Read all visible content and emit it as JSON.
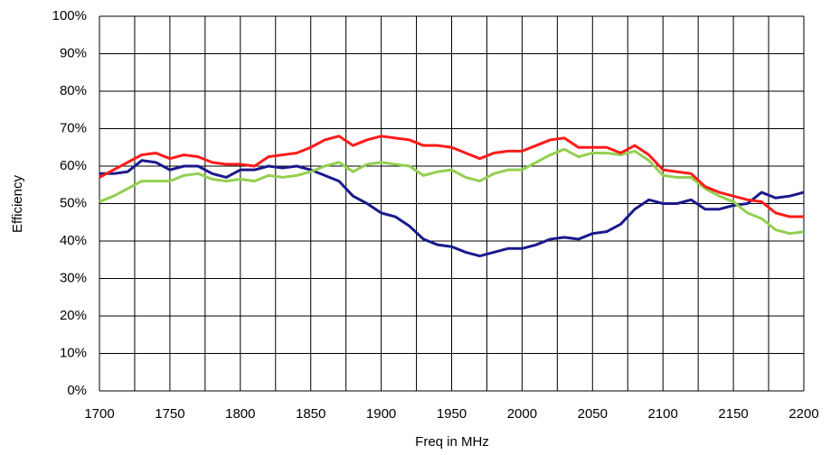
{
  "chart_data": {
    "type": "line",
    "xlabel": "Freq in MHz",
    "ylabel": "Efficiency",
    "x": [
      1700,
      1710,
      1720,
      1730,
      1740,
      1750,
      1760,
      1770,
      1780,
      1790,
      1800,
      1810,
      1820,
      1830,
      1840,
      1850,
      1860,
      1870,
      1880,
      1890,
      1900,
      1910,
      1920,
      1930,
      1940,
      1950,
      1960,
      1970,
      1980,
      1990,
      2000,
      2010,
      2020,
      2030,
      2040,
      2050,
      2060,
      2070,
      2080,
      2090,
      2100,
      2110,
      2120,
      2130,
      2140,
      2150,
      2160,
      2170,
      2180,
      2190,
      2200
    ],
    "series": [
      {
        "color": "#1a1a8c",
        "values": [
          58,
          58,
          58.5,
          61.5,
          61,
          59,
          60,
          60,
          58,
          57,
          59,
          59,
          60,
          59.5,
          60,
          59,
          57.5,
          56,
          52,
          50,
          47.5,
          46.5,
          44,
          40.5,
          39,
          38.5,
          37,
          36,
          37,
          38,
          38,
          39,
          40.5,
          41,
          40.5,
          42,
          42.5,
          44.5,
          48.5,
          51,
          50,
          50,
          51,
          48.5,
          48.5,
          49.5,
          50,
          53,
          51.5,
          52,
          53
        ]
      },
      {
        "color": "#92d050",
        "values": [
          50.5,
          52,
          54,
          56,
          56,
          56,
          57.5,
          58,
          56.5,
          56,
          56.5,
          56,
          57.5,
          57,
          57.5,
          58.5,
          60,
          61,
          58.5,
          60.5,
          61,
          60.5,
          60,
          57.5,
          58.5,
          59,
          57,
          56,
          58,
          59,
          59,
          61,
          63,
          64.5,
          62.5,
          63.5,
          63.5,
          63,
          64,
          61.5,
          57.5,
          57,
          57,
          54,
          52,
          50.5,
          47.5,
          46,
          43,
          42,
          42.5
        ]
      },
      {
        "color": "#ff1a1a",
        "values": [
          57,
          59,
          61,
          63,
          63.5,
          62,
          63,
          62.5,
          61,
          60.5,
          60.5,
          60,
          62.5,
          63,
          63.5,
          65,
          67,
          68,
          65.5,
          67,
          68,
          67.5,
          67,
          65.5,
          65.5,
          65,
          63.5,
          62,
          63.5,
          64,
          64,
          65.5,
          67,
          67.5,
          65,
          65,
          65,
          63.5,
          65.5,
          63,
          59,
          58.5,
          58,
          54.5,
          53,
          52,
          51,
          50.5,
          47.5,
          46.5,
          46.5
        ]
      }
    ],
    "xlim": [
      1700,
      2200
    ],
    "xticks": [
      1700,
      1750,
      1800,
      1850,
      1900,
      1950,
      2000,
      2050,
      2100,
      2150,
      2200
    ],
    "xminorticks": [
      1725,
      1775,
      1825,
      1875,
      1925,
      1975,
      2025,
      2075,
      2125,
      2175
    ],
    "ylim": [
      0,
      100
    ],
    "yticks": [
      {
        "value": 0,
        "label": "0%"
      },
      {
        "value": 10,
        "label": "10%"
      },
      {
        "value": 20,
        "label": "20%"
      },
      {
        "value": 30,
        "label": "30%"
      },
      {
        "value": 40,
        "label": "40%"
      },
      {
        "value": 50,
        "label": "50%"
      },
      {
        "value": 60,
        "label": "60%"
      },
      {
        "value": 70,
        "label": "70%"
      },
      {
        "value": 80,
        "label": "80%"
      },
      {
        "value": 90,
        "label": "90%"
      },
      {
        "value": 100,
        "label": "100%"
      }
    ],
    "grid": true
  }
}
